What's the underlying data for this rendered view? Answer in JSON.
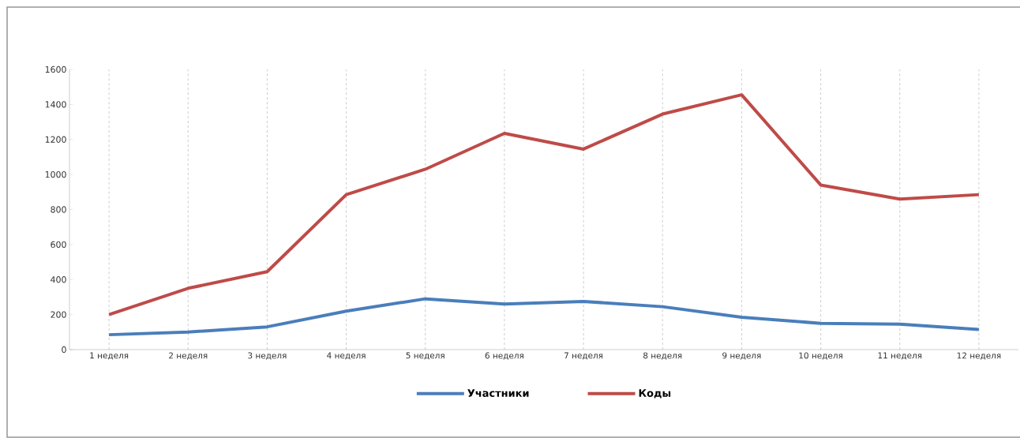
{
  "chart_data": {
    "type": "line",
    "categories": [
      "1 неделя",
      "2 неделя",
      "3 неделя",
      "4 неделя",
      "5 неделя",
      "6 неделя",
      "7 неделя",
      "8 неделя",
      "9 неделя",
      "10 неделя",
      "11 неделя",
      "12 неделя"
    ],
    "series": [
      {
        "name": "Участники",
        "color": "#4a7ebb",
        "values": [
          85,
          100,
          130,
          220,
          290,
          260,
          275,
          245,
          185,
          150,
          145,
          115
        ]
      },
      {
        "name": "Коды",
        "color": "#be4b48",
        "values": [
          200,
          350,
          445,
          885,
          1030,
          1235,
          1145,
          1345,
          1455,
          940,
          860,
          885
        ]
      }
    ],
    "ylim": [
      0,
      1600
    ],
    "yticks": [
      0,
      200,
      400,
      600,
      800,
      1000,
      1200,
      1400,
      1600
    ],
    "grid": "x",
    "legend": "bottom",
    "marker": "none",
    "line_style": "solid"
  }
}
